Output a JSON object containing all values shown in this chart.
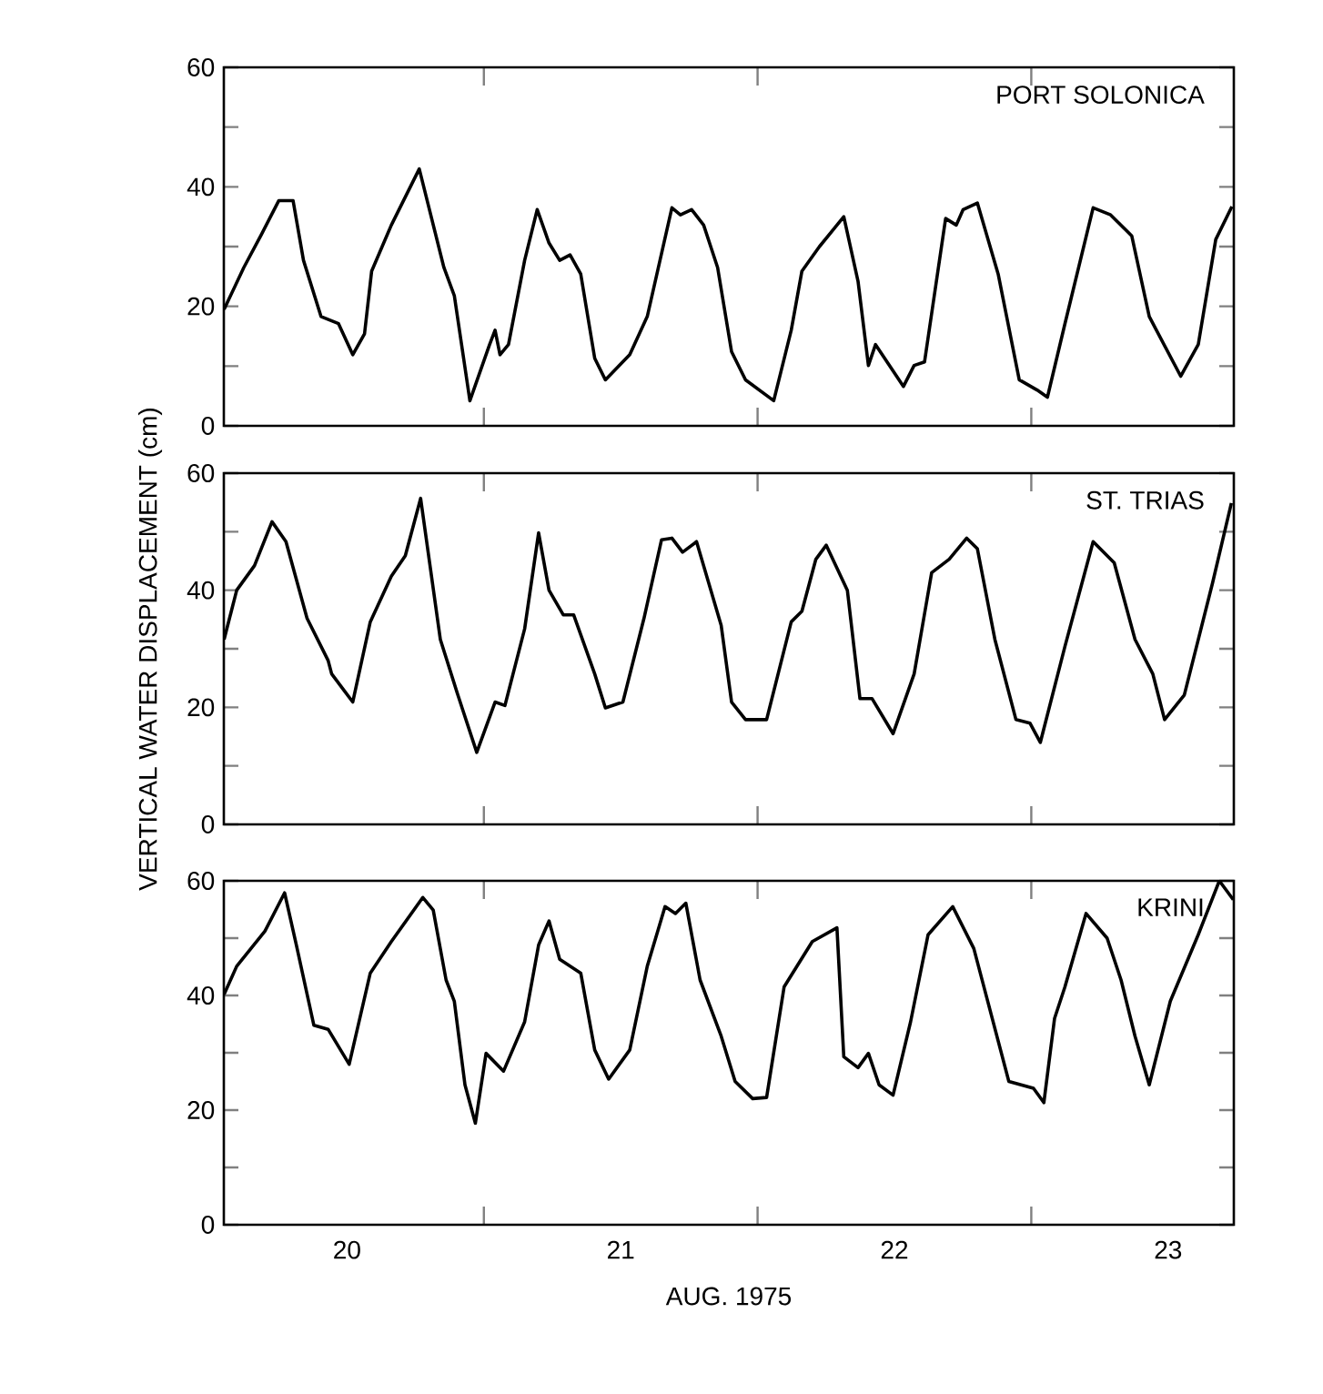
{
  "chart_data": [
    {
      "type": "line",
      "title": "PORT SOLONICA",
      "color": "#000000",
      "tick_labels": "y",
      "xlim": [
        20.05,
        23.74
      ],
      "ylim": [
        0,
        60
      ],
      "xticks": [
        {
          "value": 21,
          "label": null
        },
        {
          "value": 22,
          "label": null
        },
        {
          "value": 23,
          "label": null
        }
      ],
      "yticks": [
        0,
        {
          "value": 10,
          "label": null
        },
        20,
        {
          "value": 30,
          "label": null
        },
        40,
        {
          "value": 50,
          "label": null
        },
        60
      ],
      "x": [
        20.051,
        20.123,
        20.187,
        20.251,
        20.303,
        20.341,
        20.405,
        20.469,
        20.521,
        20.564,
        20.59,
        20.662,
        20.764,
        20.854,
        20.892,
        20.949,
        21.021,
        21.041,
        21.059,
        21.09,
        21.149,
        21.195,
        21.238,
        21.277,
        21.315,
        21.354,
        21.405,
        21.444,
        21.533,
        21.597,
        21.687,
        21.718,
        21.759,
        21.803,
        21.854,
        21.905,
        21.956,
        22.059,
        22.123,
        22.162,
        22.226,
        22.315,
        22.367,
        22.405,
        22.431,
        22.482,
        22.533,
        22.572,
        22.61,
        22.687,
        22.726,
        22.751,
        22.803,
        22.879,
        22.956,
        23.021,
        23.059,
        23.123,
        23.226,
        23.29,
        23.367,
        23.431,
        23.546,
        23.61,
        23.674,
        23.733
      ],
      "values": [
        19.5,
        26.5,
        32,
        37.7,
        37.7,
        27.7,
        18.3,
        17.1,
        11.9,
        15.4,
        25.9,
        33.6,
        43,
        26.5,
        21.8,
        4.2,
        13.6,
        16,
        11.9,
        13.6,
        27.7,
        36.2,
        30.6,
        27.7,
        28.6,
        25.4,
        11.3,
        7.7,
        11.9,
        18.3,
        36.5,
        35.3,
        36.2,
        33.6,
        26.5,
        12.4,
        7.7,
        4.2,
        16,
        25.9,
        30,
        35,
        24.2,
        10.1,
        13.6,
        10.1,
        6.6,
        10.1,
        10.7,
        34.7,
        33.6,
        36.2,
        37.3,
        25.4,
        7.7,
        6,
        4.8,
        17.1,
        36.5,
        35.3,
        31.8,
        18.3,
        8.3,
        13.6,
        31.2,
        36.7
      ]
    },
    {
      "type": "line",
      "title": "ST. TRIAS",
      "ylabel": "VERTICAL WATER DISPLACEMENT (cm)",
      "color": "#000000",
      "tick_labels": "y",
      "xlim": [
        20.05,
        23.74
      ],
      "ylim": [
        0,
        60
      ],
      "xticks": [
        {
          "value": 21,
          "label": null
        },
        {
          "value": 22,
          "label": null
        },
        {
          "value": 23,
          "label": null
        }
      ],
      "yticks": [
        0,
        {
          "value": 10,
          "label": null
        },
        20,
        {
          "value": 30,
          "label": null
        },
        40,
        {
          "value": 50,
          "label": null
        },
        60
      ],
      "x": [
        20.051,
        20.097,
        20.162,
        20.226,
        20.277,
        20.354,
        20.431,
        20.444,
        20.521,
        20.585,
        20.662,
        20.713,
        20.769,
        20.841,
        20.905,
        20.974,
        21.041,
        21.077,
        21.149,
        21.2,
        21.238,
        21.29,
        21.328,
        21.405,
        21.444,
        21.508,
        21.585,
        21.649,
        21.687,
        21.726,
        21.777,
        21.867,
        21.905,
        21.956,
        22.033,
        22.123,
        22.162,
        22.213,
        22.251,
        22.328,
        22.374,
        22.418,
        22.495,
        22.572,
        22.636,
        22.7,
        22.764,
        22.803,
        22.867,
        22.944,
        22.995,
        23.033,
        23.123,
        23.226,
        23.303,
        23.379,
        23.444,
        23.487,
        23.559,
        23.662,
        23.731
      ],
      "values": [
        31.6,
        40,
        44.2,
        51.7,
        48.3,
        35.2,
        28,
        25.7,
        20.9,
        34.6,
        42.4,
        45.9,
        55.7,
        31.6,
        22.1,
        12.3,
        20.9,
        20.3,
        33.4,
        49.8,
        40,
        35.8,
        35.8,
        25.7,
        19.9,
        20.9,
        35.2,
        48.6,
        48.9,
        46.5,
        48.3,
        34,
        20.9,
        17.9,
        17.9,
        34.6,
        36.4,
        45.3,
        47.7,
        40,
        21.5,
        21.5,
        15.5,
        25.7,
        43,
        45.3,
        48.9,
        47.1,
        31.6,
        17.9,
        17.3,
        14,
        30.4,
        48.3,
        44.7,
        31.6,
        25.7,
        17.9,
        22.1,
        41.2,
        54.9
      ]
    },
    {
      "type": "line",
      "title": "KRINI",
      "xlabel": "AUG. 1975",
      "color": "#000000",
      "xlim": [
        20.05,
        23.74
      ],
      "ylim": [
        0,
        60
      ],
      "xticks": [
        {
          "value": 20.5,
          "label": "20"
        },
        {
          "value": 21,
          "label": null
        },
        {
          "value": 21.5,
          "label": "21"
        },
        {
          "value": 22,
          "label": null
        },
        {
          "value": 22.5,
          "label": "22"
        },
        {
          "value": 23,
          "label": null
        },
        {
          "value": 23.5,
          "label": "23"
        }
      ],
      "yticks": [
        0,
        {
          "value": 10,
          "label": null
        },
        20,
        {
          "value": 30,
          "label": null
        },
        40,
        {
          "value": 50,
          "label": null
        },
        60
      ],
      "x": [
        20.051,
        20.097,
        20.2,
        20.272,
        20.315,
        20.379,
        20.431,
        20.508,
        20.585,
        20.662,
        20.777,
        20.815,
        20.862,
        20.892,
        20.931,
        20.969,
        21.008,
        21.072,
        21.149,
        21.2,
        21.238,
        21.277,
        21.354,
        21.405,
        21.456,
        21.533,
        21.597,
        21.662,
        21.7,
        21.738,
        21.79,
        21.867,
        21.918,
        21.982,
        22.033,
        22.097,
        22.2,
        22.29,
        22.315,
        22.367,
        22.405,
        22.444,
        22.495,
        22.559,
        22.623,
        22.713,
        22.79,
        22.918,
        23.008,
        23.046,
        23.085,
        23.123,
        23.2,
        23.277,
        23.328,
        23.379,
        23.431,
        23.508,
        23.61,
        23.687,
        23.738
      ],
      "values": [
        40.2,
        45.1,
        51.2,
        57.9,
        48.8,
        34.8,
        34.1,
        28,
        43.9,
        49.4,
        57.1,
        54.9,
        42.7,
        39,
        24.4,
        17.7,
        29.9,
        26.8,
        35.4,
        48.8,
        53,
        46.3,
        43.9,
        30.5,
        25.4,
        30.5,
        45.1,
        55.5,
        54.3,
        56.1,
        42.7,
        32.9,
        25,
        22,
        22.2,
        41.5,
        49.4,
        51.8,
        29.3,
        27.4,
        29.9,
        24.4,
        22.6,
        35.4,
        50.6,
        55.5,
        48.2,
        25,
        23.8,
        21.3,
        36,
        41.5,
        54.3,
        50,
        42.7,
        32.9,
        24.4,
        39,
        50.6,
        60,
        56.7
      ]
    }
  ]
}
